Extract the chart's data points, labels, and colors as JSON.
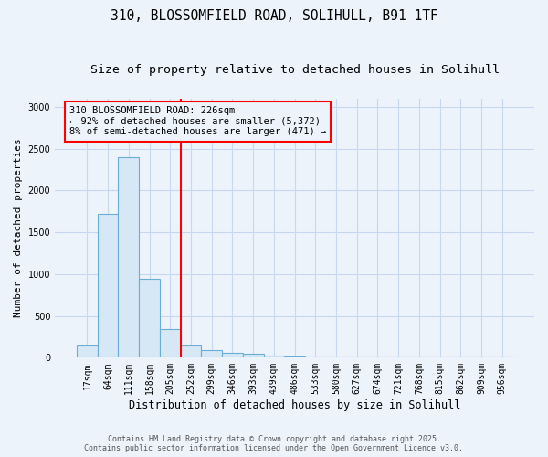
{
  "title1": "310, BLOSSOMFIELD ROAD, SOLIHULL, B91 1TF",
  "title2": "Size of property relative to detached houses in Solihull",
  "xlabel": "Distribution of detached houses by size in Solihull",
  "ylabel": "Number of detached properties",
  "categories": [
    "17sqm",
    "64sqm",
    "111sqm",
    "158sqm",
    "205sqm",
    "252sqm",
    "299sqm",
    "346sqm",
    "393sqm",
    "439sqm",
    "486sqm",
    "533sqm",
    "580sqm",
    "627sqm",
    "674sqm",
    "721sqm",
    "768sqm",
    "815sqm",
    "862sqm",
    "909sqm",
    "956sqm"
  ],
  "values": [
    150,
    1720,
    2400,
    940,
    340,
    150,
    90,
    55,
    50,
    30,
    20,
    5,
    5,
    0,
    0,
    0,
    0,
    0,
    0,
    0,
    0
  ],
  "bar_color": "#d6e8f5",
  "bar_edge_color": "#6aaed6",
  "vline_x": 4.5,
  "vline_color": "red",
  "annotation_text": "310 BLOSSOMFIELD ROAD: 226sqm\n← 92% of detached houses are smaller (5,372)\n8% of semi-detached houses are larger (471) →",
  "ylim": [
    0,
    3100
  ],
  "bg_color": "#edf3fb",
  "grid_color": "#c5d8ef",
  "footnote": "Contains HM Land Registry data © Crown copyright and database right 2025.\nContains public sector information licensed under the Open Government Licence v3.0.",
  "title_fontsize": 10.5,
  "subtitle_fontsize": 9.5,
  "xlabel_fontsize": 8.5,
  "ylabel_fontsize": 8,
  "tick_fontsize": 7,
  "annot_fontsize": 7.5,
  "footnote_fontsize": 6
}
